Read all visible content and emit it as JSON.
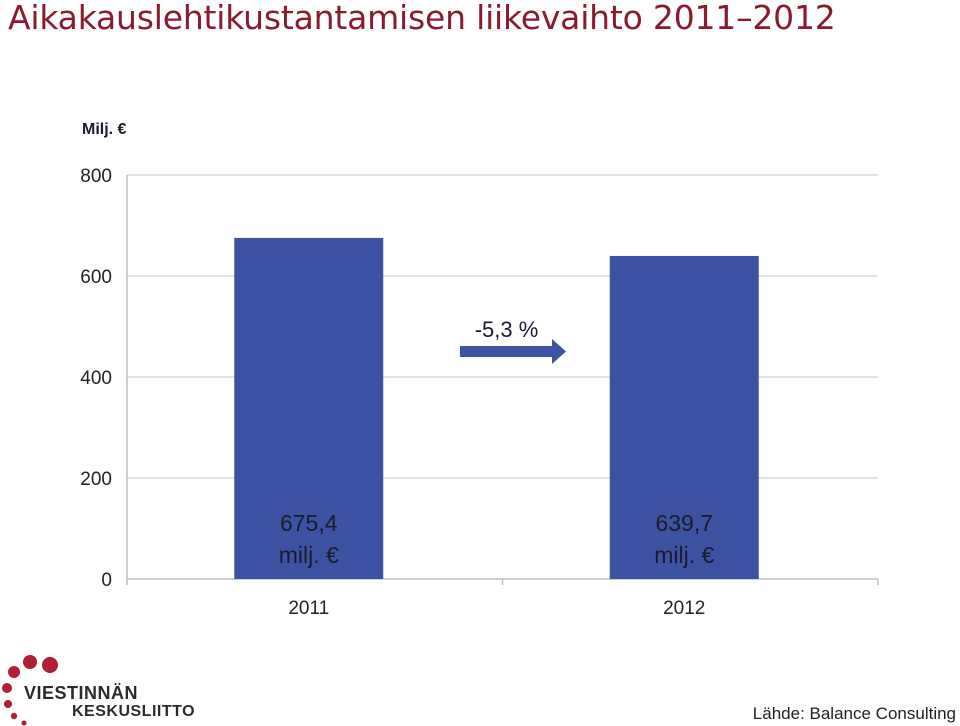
{
  "title": "Aikakauslehtikustantamisen liikevaihto 2011–2012",
  "unit_label": "Milj. €",
  "colors": {
    "title": "#8b1a2b",
    "bar": "#3c53a3",
    "arrow": "#3c53a3",
    "grid": "#d9d9d9",
    "logo_dots": "#b01f36"
  },
  "chart_data": {
    "type": "bar",
    "categories": [
      "2011",
      "2012"
    ],
    "values": [
      675.4,
      639.7
    ],
    "ylim": [
      0,
      800
    ],
    "yticks": [
      "0",
      "200",
      "400",
      "600",
      "800"
    ],
    "ylabel": "Milj. €",
    "xlabel": "",
    "grid": true,
    "data_labels": [
      {
        "value": "675,4",
        "unit": "milj. €"
      },
      {
        "value": "639,7",
        "unit": "milj. €"
      }
    ],
    "annotation": {
      "text": "-5,3 %",
      "icon": "right-arrow-icon"
    }
  },
  "logo": {
    "line1": "VIESTINNÄN",
    "line2": "KESKUSLIITTO"
  },
  "source": "Lähde: Balance Consulting"
}
